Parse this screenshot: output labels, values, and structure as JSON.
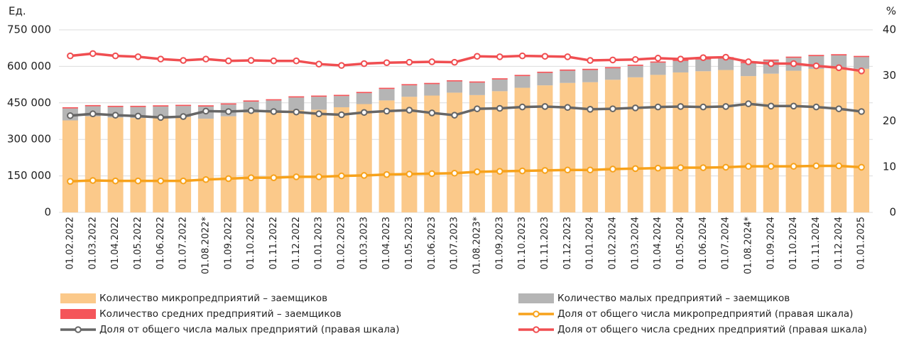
{
  "chart_data": {
    "type": "bar",
    "stacked": true,
    "y_axis_label": "Ед.",
    "y2_axis_label": "%",
    "categories": [
      "01.02.2022",
      "01.03.2022",
      "01.04.2022",
      "01.05.2022",
      "01.06.2022",
      "01.07.2022",
      "01.08.2022*",
      "01.09.2022",
      "01.10.2022",
      "01.11.2022",
      "01.12.2022",
      "01.01.2023",
      "01.02.2023",
      "01.03.2023",
      "01.04.2023",
      "01.05.2023",
      "01.06.2023",
      "01.07.2023",
      "01.08.2023*",
      "01.09.2023",
      "01.10.2023",
      "01.11.2023",
      "01.12.2023",
      "01.01.2024",
      "01.02.2024",
      "01.03.2024",
      "01.04.2024",
      "01.05.2024",
      "01.06.2024",
      "01.07.2024",
      "01.08.2024*",
      "01.09.2024",
      "01.10.2024",
      "01.11.2024",
      "01.12.2024",
      "01.01.2025"
    ],
    "series": [
      {
        "name": "Количество микропредприятий – заемщиков",
        "kind": "bar",
        "color": "#fbc98a",
        "values": [
          378000,
          395000,
          390000,
          388000,
          390000,
          392000,
          385000,
          395000,
          410000,
          415000,
          420000,
          422000,
          432000,
          445000,
          460000,
          475000,
          480000,
          492000,
          482000,
          498000,
          512000,
          522000,
          532000,
          535000,
          545000,
          555000,
          565000,
          575000,
          580000,
          585000,
          560000,
          570000,
          582000,
          590000,
          595000,
          590000
        ]
      },
      {
        "name": "Количество малых предприятий – заемщиков",
        "kind": "bar",
        "color": "#b5b5b5",
        "values": [
          49000,
          41000,
          43000,
          45000,
          45000,
          45000,
          50000,
          48000,
          45000,
          45000,
          52000,
          53000,
          46000,
          45000,
          47000,
          47000,
          47000,
          46000,
          51000,
          48000,
          48000,
          51000,
          50000,
          50000,
          47000,
          47000,
          50000,
          47000,
          48000,
          48000,
          53000,
          53000,
          53000,
          52000,
          50000,
          48000
        ]
      },
      {
        "name": "Количество средних предприятий – заемщиков",
        "kind": "bar",
        "color": "#f4555a",
        "values": [
          5000,
          5000,
          5000,
          5000,
          5000,
          5000,
          5000,
          5000,
          5000,
          5000,
          5000,
          5000,
          5000,
          5000,
          5000,
          5000,
          5000,
          5000,
          5000,
          5000,
          5000,
          5000,
          5000,
          5000,
          5000,
          5000,
          5000,
          5000,
          5000,
          5000,
          5000,
          5000,
          5000,
          5000,
          5000,
          5000
        ]
      },
      {
        "name": "Доля от общего числа микропредприятий (правая шкала)",
        "kind": "line",
        "axis": "y2",
        "color": "#f7a21b",
        "values": [
          6.8,
          7.0,
          6.9,
          6.9,
          6.9,
          6.9,
          7.2,
          7.4,
          7.6,
          7.6,
          7.8,
          7.8,
          8.0,
          8.1,
          8.3,
          8.4,
          8.5,
          8.6,
          8.9,
          9.0,
          9.1,
          9.2,
          9.3,
          9.3,
          9.5,
          9.6,
          9.7,
          9.8,
          9.8,
          9.9,
          10.1,
          10.1,
          10.1,
          10.2,
          10.2,
          9.9
        ]
      },
      {
        "name": "Доля от общего числа малых предприятий (правая шкала)",
        "kind": "line",
        "axis": "y2",
        "color": "#666666",
        "values": [
          21.2,
          21.6,
          21.3,
          21.1,
          20.8,
          21.0,
          22.2,
          22.1,
          22.3,
          22.1,
          22.0,
          21.6,
          21.4,
          21.9,
          22.2,
          22.4,
          21.8,
          21.3,
          22.7,
          22.8,
          23.1,
          23.2,
          23.0,
          22.6,
          22.7,
          22.9,
          23.1,
          23.2,
          23.1,
          23.2,
          23.8,
          23.3,
          23.3,
          23.1,
          22.7,
          22.1
        ]
      },
      {
        "name": "Доля от общего числа средних предприятий (правая шкала)",
        "kind": "line",
        "axis": "y2",
        "color": "#f04e51",
        "values": [
          34.3,
          34.8,
          34.3,
          34.1,
          33.6,
          33.3,
          33.6,
          33.2,
          33.3,
          33.2,
          33.2,
          32.5,
          32.2,
          32.6,
          32.8,
          32.9,
          33.0,
          32.9,
          34.2,
          34.1,
          34.3,
          34.2,
          34.1,
          33.3,
          33.4,
          33.5,
          33.8,
          33.6,
          33.9,
          34.0,
          33.0,
          32.6,
          32.6,
          32.1,
          31.7,
          31.0
        ]
      }
    ],
    "ylim": [
      0,
      750000
    ],
    "yticks": [
      0,
      {
        "value": 150000,
        "label": "150 000"
      },
      {
        "value": 300000,
        "label": "300 000"
      },
      {
        "value": 450000,
        "label": "450 000"
      },
      {
        "value": 600000,
        "label": "600 000"
      },
      {
        "value": 750000,
        "label": "750 000"
      }
    ],
    "y2lim": [
      0,
      40
    ],
    "y2ticks": [
      0,
      10,
      20,
      30,
      40
    ],
    "grid": true
  }
}
